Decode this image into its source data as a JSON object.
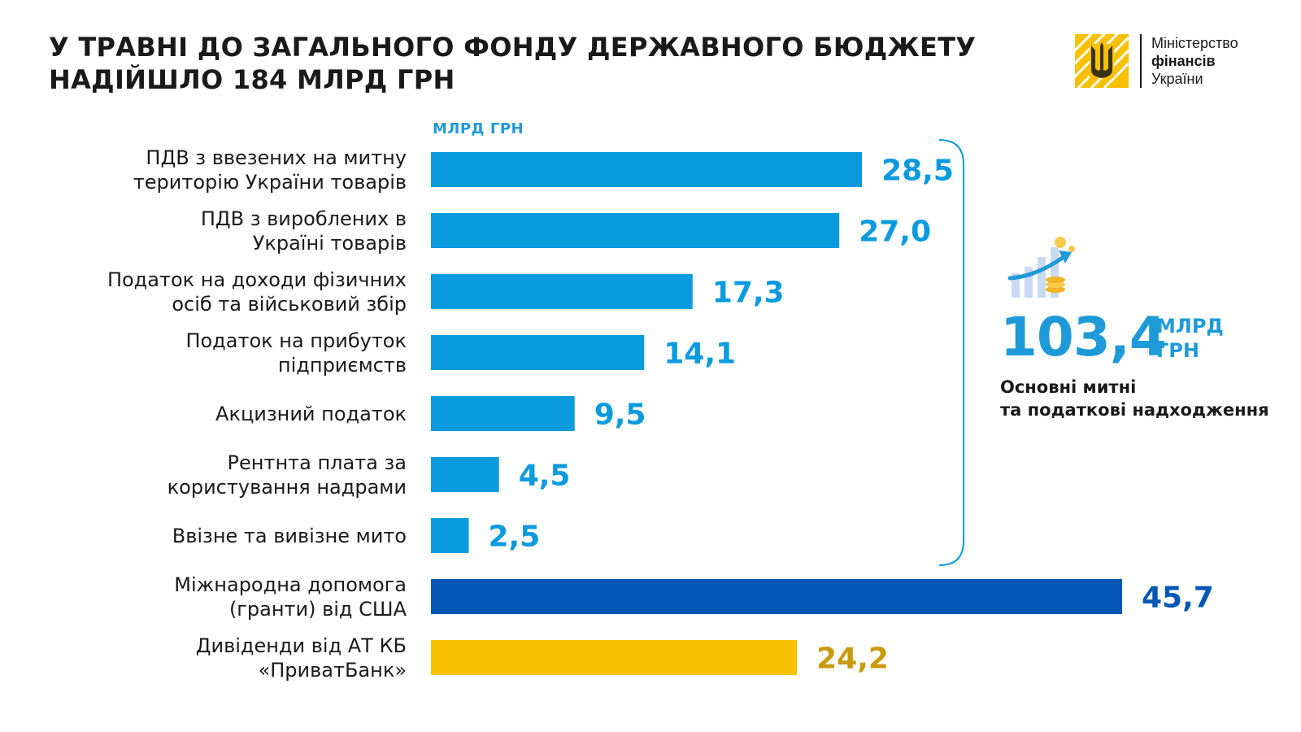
{
  "header": {
    "title_line1": "У ТРАВНІ ДО ЗАГАЛЬНОГО ФОНДУ ДЕРЖАВНОГО БЮДЖЕТУ",
    "title_line2": "НАДІЙШЛО 184 МЛРД ГРН"
  },
  "logo": {
    "line1": "Міністерство",
    "line2": "фінансів",
    "line3": "України"
  },
  "summary": {
    "value": "103,4",
    "unit_line1": "МЛРД",
    "unit_line2": "ГРН",
    "caption_line1": "Основні митні",
    "caption_line2": "та податкові надходження",
    "icon": "growth-chart-coins-icon"
  },
  "colors": {
    "light_blue": "#0a9bde",
    "dark_blue": "#0457b4",
    "yellow": "#f7c100",
    "gold_text": "#c99a0e",
    "text": "#1a1a1a"
  },
  "chart_data": {
    "type": "bar",
    "orientation": "horizontal",
    "unit": "МЛРД ГРН",
    "categories": [
      [
        "ПДВ з ввезених на митну",
        "територію України товарів"
      ],
      [
        "ПДВ з вироблених в",
        "Україні товарів"
      ],
      [
        "Податок на доходи фізичних",
        "осіб та військовий збір"
      ],
      [
        "Податок на прибуток",
        "підприємств"
      ],
      [
        "Акцизний податок"
      ],
      [
        "Рентнта плата за",
        "користування надрами"
      ],
      [
        "Ввізне та вивізне мито"
      ],
      [
        "Міжнародна допомога",
        "(гранти) від США"
      ],
      [
        "Дивіденди від АТ КБ",
        "«ПриватБанк»"
      ]
    ],
    "values": [
      28.5,
      27.0,
      17.3,
      14.1,
      9.5,
      4.5,
      2.5,
      45.7,
      24.2
    ],
    "value_labels": [
      "28,5",
      "27,0",
      "17,3",
      "14,1",
      "9,5",
      "4,5",
      "2,5",
      "45,7",
      "24,2"
    ],
    "bar_colors": [
      "light_blue",
      "light_blue",
      "light_blue",
      "light_blue",
      "light_blue",
      "light_blue",
      "light_blue",
      "dark_blue",
      "yellow"
    ],
    "label_colors": [
      "light_blue",
      "light_blue",
      "light_blue",
      "light_blue",
      "light_blue",
      "light_blue",
      "light_blue",
      "dark_blue",
      "gold_text"
    ],
    "bracket_range": [
      0,
      6
    ],
    "xlim": [
      0,
      45.7
    ]
  }
}
